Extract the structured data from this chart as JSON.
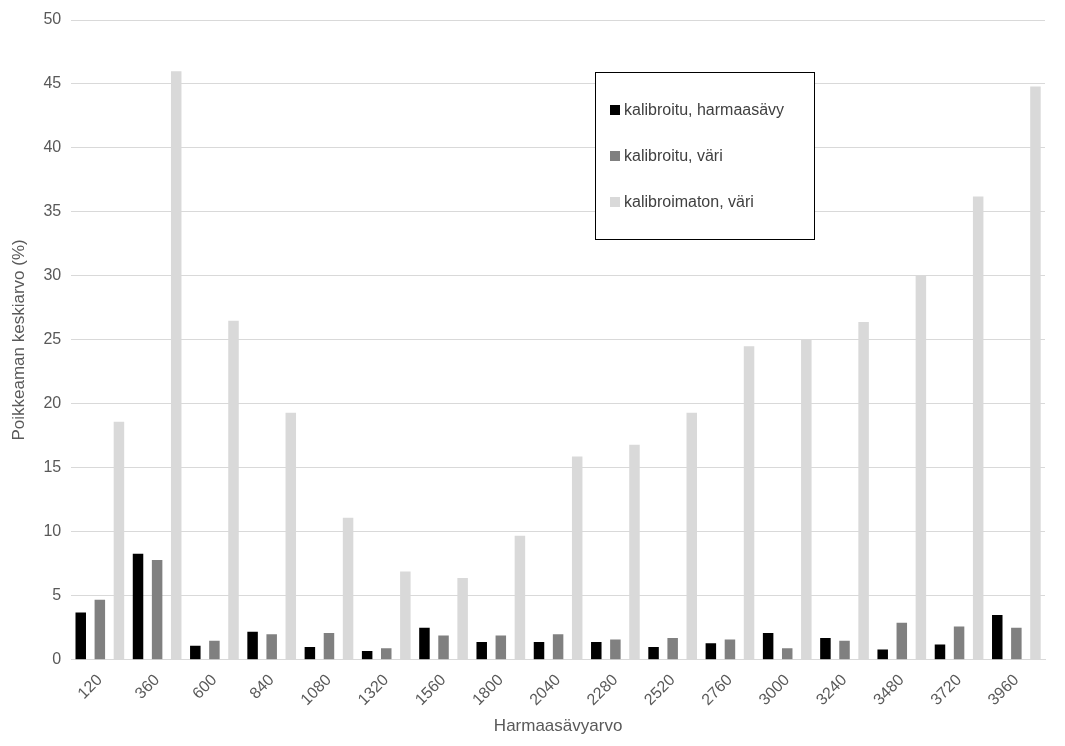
{
  "chart_data": {
    "type": "bar",
    "xlabel": "Harmaasävyarvo",
    "ylabel": "Poikkeaman keskiarvo (%)",
    "categories": [
      "120",
      "360",
      "600",
      "840",
      "1080",
      "1320",
      "1560",
      "1800",
      "2040",
      "2280",
      "2520",
      "2760",
      "3000",
      "3240",
      "3480",
      "3720",
      "3960"
    ],
    "series": [
      {
        "name": "kalibroitu, harmaasävy",
        "color": "#000000",
        "values": [
          3.7,
          8.3,
          1.1,
          2.2,
          1.0,
          0.7,
          2.5,
          1.4,
          1.4,
          1.4,
          1.0,
          1.3,
          2.1,
          1.7,
          0.8,
          1.2,
          3.5
        ]
      },
      {
        "name": "kalibroitu, väri",
        "color": "#808080",
        "values": [
          4.7,
          7.8,
          1.5,
          2.0,
          2.1,
          0.9,
          1.9,
          1.9,
          2.0,
          1.6,
          1.7,
          1.6,
          0.9,
          1.5,
          2.9,
          2.6,
          2.5
        ]
      },
      {
        "name": "kalibroimaton, väri",
        "color": "#d9d9d9",
        "values": [
          18.6,
          46,
          26.5,
          19.3,
          11.1,
          6.9,
          6.4,
          9.7,
          15.9,
          16.8,
          19.3,
          24.5,
          25.0,
          26.4,
          30.0,
          36.2,
          44.8
        ]
      }
    ],
    "ylim": [
      0,
      50
    ],
    "yticks": [
      0,
      5,
      10,
      15,
      20,
      25,
      30,
      35,
      40,
      45,
      50
    ],
    "grid": "y",
    "legend": "top right"
  }
}
